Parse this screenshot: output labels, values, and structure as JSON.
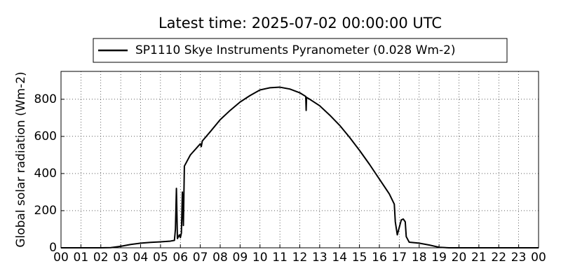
{
  "chart_data": {
    "type": "line",
    "title": "Latest time: 2025-07-02 00:00:00 UTC",
    "y_label": "Global solar radiation (Wm-2)",
    "legend": "upper center",
    "grid": true,
    "xlim": [
      0,
      24
    ],
    "ylim": [
      0,
      950
    ],
    "xticks": [
      {
        "value": 0,
        "label": "00"
      },
      {
        "value": 1,
        "label": "01"
      },
      {
        "value": 2,
        "label": "02"
      },
      {
        "value": 3,
        "label": "03"
      },
      {
        "value": 4,
        "label": "04"
      },
      {
        "value": 5,
        "label": "05"
      },
      {
        "value": 6,
        "label": "06"
      },
      {
        "value": 7,
        "label": "07"
      },
      {
        "value": 8,
        "label": "08"
      },
      {
        "value": 9,
        "label": "09"
      },
      {
        "value": 10,
        "label": "10"
      },
      {
        "value": 11,
        "label": "11"
      },
      {
        "value": 12,
        "label": "12"
      },
      {
        "value": 13,
        "label": "13"
      },
      {
        "value": 14,
        "label": "14"
      },
      {
        "value": 15,
        "label": "15"
      },
      {
        "value": 16,
        "label": "16"
      },
      {
        "value": 17,
        "label": "17"
      },
      {
        "value": 18,
        "label": "18"
      },
      {
        "value": 19,
        "label": "19"
      },
      {
        "value": 20,
        "label": "20"
      },
      {
        "value": 21,
        "label": "21"
      },
      {
        "value": 22,
        "label": "22"
      },
      {
        "value": 23,
        "label": "23"
      },
      {
        "value": 24,
        "label": "00"
      }
    ],
    "yticks": [
      0,
      200,
      400,
      600,
      800
    ],
    "x": [
      0,
      2,
      2.5,
      3,
      3.5,
      4,
      4.5,
      5,
      5.5,
      5.7,
      5.75,
      5.8,
      5.85,
      5.95,
      6.0,
      6.05,
      6.1,
      6.15,
      6.2,
      6.5,
      7,
      7.05,
      7.1,
      7.5,
      8,
      8.5,
      9,
      9.5,
      10,
      10.5,
      11,
      11.5,
      12,
      12.3,
      12.32,
      12.34,
      12.5,
      13,
      13.5,
      14,
      14.5,
      15,
      15.5,
      16,
      16.5,
      16.75,
      16.8,
      16.9,
      17.0,
      17.1,
      17.2,
      17.3,
      17.35,
      17.5,
      18,
      18.5,
      19,
      19.5,
      24
    ],
    "series": [
      {
        "name": "SP1110 Skye Instruments Pyranometer (0.028 Wm-2)",
        "color": "#000000",
        "values": [
          0,
          0,
          1,
          8,
          18,
          25,
          29,
          32,
          36,
          40,
          100,
          320,
          50,
          70,
          55,
          80,
          300,
          120,
          440,
          500,
          560,
          545,
          575,
          625,
          690,
          740,
          785,
          820,
          850,
          862,
          865,
          855,
          835,
          815,
          740,
          810,
          800,
          765,
          715,
          660,
          595,
          525,
          450,
          370,
          290,
          235,
          140,
          70,
          110,
          150,
          155,
          140,
          60,
          30,
          25,
          15,
          3,
          0,
          0
        ]
      }
    ]
  }
}
